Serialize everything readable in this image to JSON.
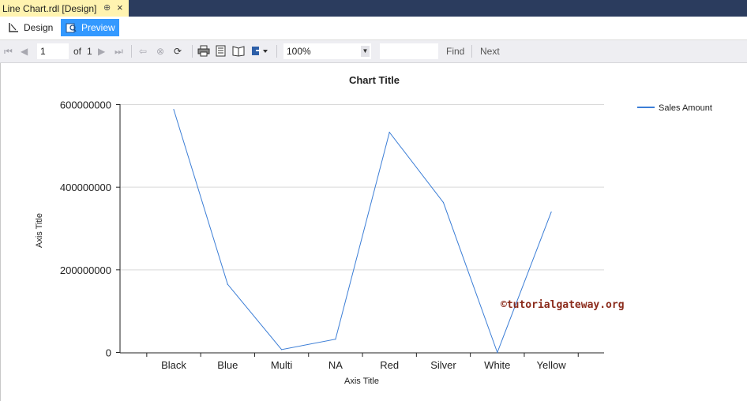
{
  "window": {
    "tab_title": "Line Chart.rdl [Design]",
    "pin_glyph": "⊕",
    "close_glyph": "×"
  },
  "view_tabs": {
    "design": "Design",
    "preview": "Preview"
  },
  "toolbar": {
    "page_value": "1",
    "of_label": "of",
    "total_pages": "1",
    "zoom_value": "100%",
    "find_label": "Find",
    "next_label": "Next"
  },
  "watermark": "©tutorialgateway.org",
  "chart_data": {
    "type": "line",
    "title": "Chart Title",
    "xlabel": "Axis Title",
    "ylabel": "Axis Title",
    "categories": [
      "Black",
      "Blue",
      "Multi",
      "NA",
      "Red",
      "Silver",
      "White",
      "Yellow"
    ],
    "series": [
      {
        "name": "Sales Amount",
        "values": [
          588000000,
          165000000,
          7000000,
          32000000,
          533000000,
          363000000,
          0,
          340000000
        ],
        "color": "#3c7ed6"
      }
    ],
    "ylim": [
      0,
      600000000
    ],
    "yticks": [
      "0",
      "200000000",
      "400000000",
      "600000000"
    ],
    "ytick_values": [
      0,
      200000000,
      400000000,
      600000000
    ],
    "grid": true,
    "legend": "top-right"
  }
}
